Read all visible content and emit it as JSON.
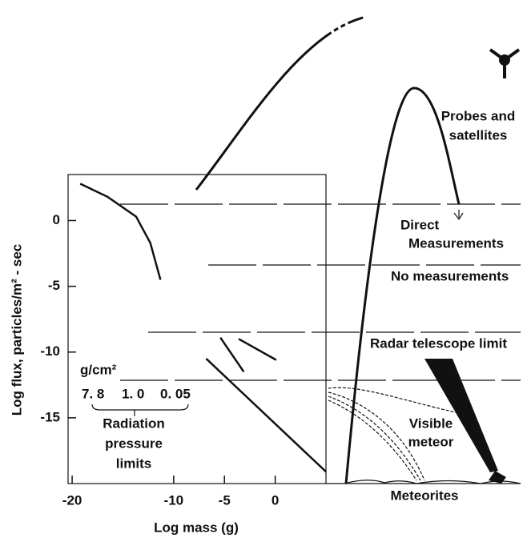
{
  "chart_data": {
    "type": "line",
    "x_label": "Log mass (g)",
    "y_label": "Log flux, particles/m² - sec",
    "xlim": [
      -20.4,
      5
    ],
    "ylim": [
      -20,
      3.5
    ],
    "xticks": [
      -20,
      -10,
      -5,
      0
    ],
    "yticks": [
      0,
      -5,
      -10,
      -15
    ],
    "color": "#111111",
    "series": [
      {
        "x": [
          -19.2,
          -16.5,
          -13.7,
          -12.3,
          -11.3
        ],
        "values": [
          2.8,
          1.8,
          0.3,
          -1.7,
          -4.5
        ]
      },
      {
        "x": [
          -6.8,
          5
        ],
        "values": [
          -10.5,
          -19.1
        ]
      },
      {
        "x": [
          -5.4,
          -3.1
        ],
        "values": [
          -8.9,
          -11.5
        ]
      },
      {
        "x": [
          -3.6,
          0.1
        ],
        "values": [
          -9,
          -10.6
        ]
      }
    ],
    "annotations": {
      "density_unit": "g/cm²",
      "densities": [
        "7. 8",
        "1. 0",
        "0. 05"
      ],
      "radiation": [
        "Radiation",
        "pressure",
        "limits"
      ],
      "probes": [
        "Probes and",
        "satellites"
      ],
      "direct": [
        "Direct",
        "Measurements"
      ],
      "none": "No measurements",
      "radar": "Radar telescope limit",
      "visible": [
        "Visible",
        "meteor"
      ],
      "meteorites": "Meteorites"
    }
  }
}
